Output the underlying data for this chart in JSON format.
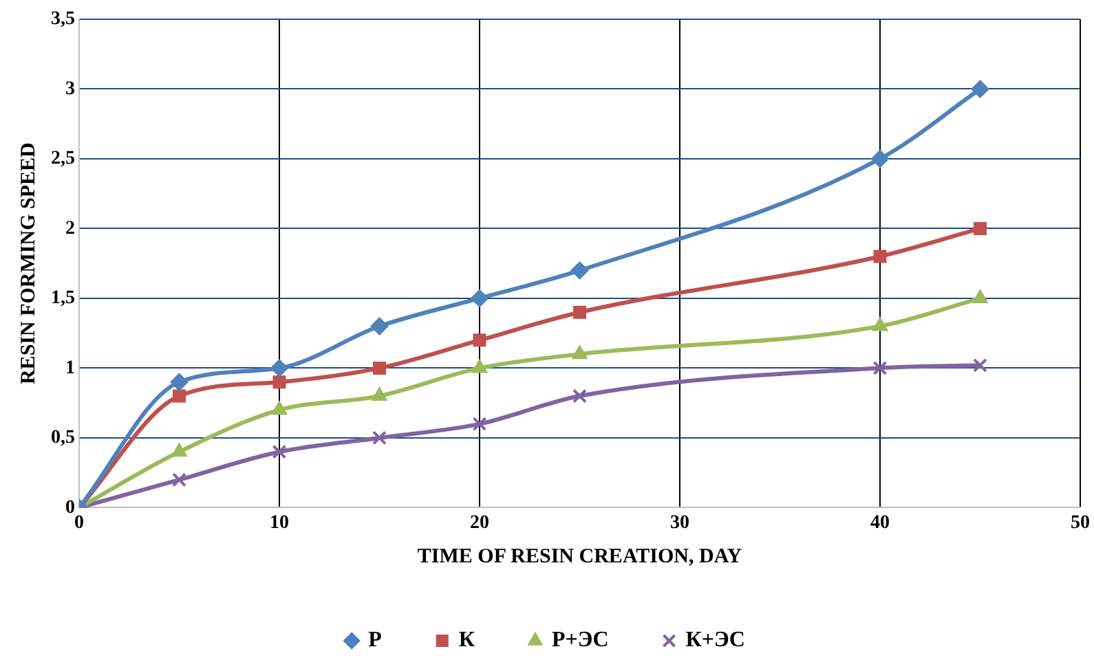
{
  "chart_data": {
    "type": "line",
    "xlabel": "TIME OF RESIN CREATION, DAY",
    "ylabel": "RESIN FORMING SPEED",
    "x": [
      0,
      5,
      10,
      15,
      20,
      25,
      40,
      45
    ],
    "series": [
      {
        "name": "Р",
        "color": "#4f81bd",
        "marker": "diamond",
        "values": [
          0,
          0.9,
          1.0,
          1.3,
          1.5,
          1.7,
          2.5,
          3.0
        ]
      },
      {
        "name": "К",
        "color": "#c0504d",
        "marker": "square",
        "values": [
          0,
          0.8,
          0.9,
          1.0,
          1.2,
          1.4,
          1.8,
          2.0
        ]
      },
      {
        "name": "Р+ЭС",
        "color": "#9bbb59",
        "marker": "triangle",
        "values": [
          0,
          0.4,
          0.7,
          0.8,
          1.0,
          1.1,
          1.3,
          1.5
        ]
      },
      {
        "name": "К+ЭС",
        "color": "#8064a2",
        "marker": "cross",
        "values": [
          0,
          0.2,
          0.4,
          0.5,
          0.6,
          0.8,
          1.0,
          1.02
        ]
      }
    ],
    "xlim": [
      0,
      50
    ],
    "xticks": [
      0,
      10,
      20,
      30,
      40,
      50
    ],
    "ylim": [
      0,
      3.5
    ],
    "yticks": [
      0,
      {
        "value": 0.5,
        "label": "0,5"
      },
      1,
      {
        "value": 1.5,
        "label": "1,5"
      },
      2,
      {
        "value": 2.5,
        "label": "2,5"
      },
      3,
      {
        "value": 3.5,
        "label": "3,5"
      }
    ],
    "grid": true,
    "legend": "bottom",
    "line_style": "solid"
  }
}
